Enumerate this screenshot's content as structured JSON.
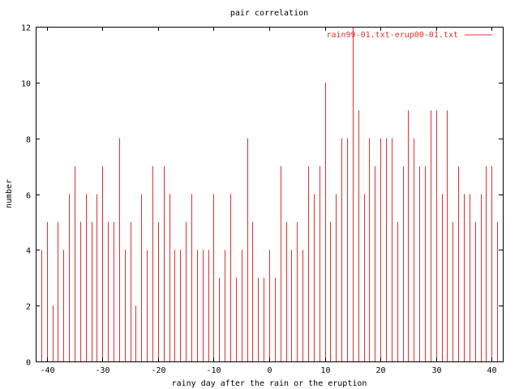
{
  "chart_data": {
    "type": "bar",
    "title": "pair correlation",
    "xlabel": "rainy day after the rain or the eruption",
    "ylabel": "number",
    "xlim": [
      -42,
      42
    ],
    "ylim": [
      0,
      12
    ],
    "xticks": [
      -40,
      -30,
      -20,
      -10,
      0,
      10,
      20,
      30,
      40
    ],
    "yticks": [
      0,
      2,
      4,
      6,
      8,
      10,
      12
    ],
    "grid": false,
    "legend_position": "top-right",
    "series": [
      {
        "name": "rain99-01.txt-erup00-01.txt",
        "color": "#e03030",
        "x": [
          -42,
          -41,
          -40,
          -39,
          -38,
          -37,
          -36,
          -35,
          -34,
          -33,
          -32,
          -31,
          -30,
          -29,
          -28,
          -27,
          -26,
          -25,
          -24,
          -23,
          -22,
          -21,
          -20,
          -19,
          -18,
          -17,
          -16,
          -15,
          -14,
          -13,
          -12,
          -11,
          -10,
          -9,
          -8,
          -7,
          -6,
          -5,
          -4,
          -3,
          -2,
          -1,
          0,
          1,
          2,
          3,
          4,
          5,
          6,
          7,
          8,
          9,
          10,
          11,
          12,
          13,
          14,
          15,
          16,
          17,
          18,
          19,
          20,
          21,
          22,
          23,
          24,
          25,
          26,
          27,
          28,
          29,
          30,
          31,
          32,
          33,
          34,
          35,
          36,
          37,
          38,
          39,
          40,
          41,
          42
        ],
        "values": [
          5,
          4,
          5,
          2,
          5,
          4,
          6,
          7,
          5,
          6,
          5,
          6,
          7,
          5,
          5,
          8,
          4,
          5,
          2,
          6,
          4,
          7,
          5,
          7,
          6,
          4,
          4,
          5,
          6,
          4,
          4,
          4,
          6,
          3,
          4,
          6,
          3,
          4,
          8,
          5,
          3,
          3,
          4,
          3,
          7,
          5,
          4,
          5,
          4,
          7,
          6,
          7,
          10,
          5,
          6,
          8,
          8,
          12,
          9,
          6,
          8,
          7,
          8,
          8,
          8,
          5,
          7,
          9,
          8,
          7,
          7,
          9,
          9,
          6,
          9,
          5,
          7,
          6,
          6,
          5,
          6,
          7,
          7,
          5,
          5
        ]
      }
    ]
  }
}
